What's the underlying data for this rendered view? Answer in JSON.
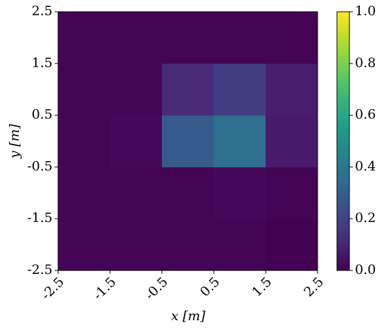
{
  "chart_data": {
    "type": "heatmap",
    "colormap": "viridis",
    "xlabel": "x [m]",
    "ylabel": "y [m]",
    "xlim": [
      -2.5,
      2.5
    ],
    "ylim": [
      -2.5,
      2.5
    ],
    "xticks": [
      -2.5,
      -1.5,
      -0.5,
      0.5,
      1.5,
      2.5
    ],
    "yticks": [
      -2.5,
      -1.5,
      -0.5,
      0.5,
      1.5,
      2.5
    ],
    "values": [
      [
        0.01,
        0.01,
        0.01,
        0.01,
        0.0
      ],
      [
        0.01,
        0.01,
        0.01,
        0.02,
        0.01
      ],
      [
        0.01,
        0.02,
        0.28,
        0.36,
        0.07
      ],
      [
        0.01,
        0.01,
        0.12,
        0.18,
        0.08
      ],
      [
        0.01,
        0.01,
        0.01,
        0.01,
        0.01
      ]
    ],
    "clim": [
      0,
      1
    ],
    "cticks": [
      {
        "value": 0,
        "label": "0.0"
      },
      0.2,
      0.4,
      0.6,
      0.8,
      {
        "value": 1,
        "label": "1.0"
      }
    ]
  }
}
